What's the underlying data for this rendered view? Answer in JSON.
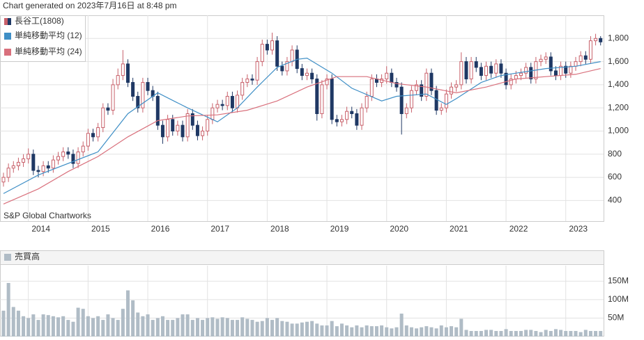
{
  "header": {
    "text": "Chart generated on 2023年7月16日 at 8:48 pm",
    "credit": "S&P Global Chartworks"
  },
  "chart_data": [
    {
      "type": "candlestick",
      "name": "長谷工(1808)",
      "up_color": "#c8606a",
      "down_color": "#1f3864",
      "open": [
        560,
        600,
        680,
        700,
        730,
        760,
        800,
        660,
        650,
        700,
        680,
        750,
        780,
        820,
        800,
        720,
        820,
        870,
        980,
        950,
        1030,
        1200,
        1180,
        1400,
        1480,
        1580,
        1420,
        1300,
        1200,
        1420,
        1350,
        1300,
        1050,
        950,
        1100,
        1000,
        1050,
        950,
        1150,
        1050,
        960,
        1000,
        1100,
        1200,
        1230,
        1220,
        1300,
        1200,
        1310,
        1420,
        1450,
        1440,
        1600,
        1750,
        1700,
        1780,
        1560,
        1520,
        1600,
        1700,
        1540,
        1480,
        1500,
        1450,
        1150,
        1400,
        1450,
        1100,
        1080,
        1100,
        1170,
        1150,
        1050,
        1200,
        1300,
        1450,
        1420,
        1450,
        1500,
        1420,
        1380,
        1150,
        1200,
        1350,
        1400,
        1300,
        1500,
        1350,
        1180,
        1200,
        1320,
        1380,
        1400,
        1600,
        1450,
        1600,
        1550,
        1480,
        1560,
        1500,
        1580,
        1500,
        1400,
        1450,
        1480,
        1500,
        1550,
        1450,
        1600,
        1620,
        1640,
        1520,
        1480,
        1560,
        1500,
        1560,
        1600,
        1650,
        1620,
        1780,
        1800
      ],
      "high": [
        640,
        720,
        740,
        770,
        800,
        850,
        840,
        700,
        740,
        740,
        790,
        820,
        860,
        860,
        840,
        860,
        910,
        1020,
        1020,
        1070,
        1240,
        1240,
        1450,
        1540,
        1700,
        1620,
        1460,
        1340,
        1460,
        1460,
        1390,
        1340,
        1090,
        1140,
        1140,
        1090,
        1090,
        1190,
        1190,
        1090,
        1040,
        1140,
        1240,
        1270,
        1270,
        1340,
        1340,
        1350,
        1460,
        1490,
        1490,
        1640,
        1790,
        1790,
        1850,
        1820,
        1600,
        1640,
        1740,
        1740,
        1580,
        1540,
        1540,
        1490,
        1440,
        1490,
        1490,
        1140,
        1140,
        1210,
        1210,
        1190,
        1240,
        1340,
        1490,
        1490,
        1490,
        1560,
        1540,
        1460,
        1420,
        1240,
        1390,
        1440,
        1440,
        1540,
        1540,
        1390,
        1240,
        1360,
        1420,
        1440,
        1680,
        1640,
        1640,
        1640,
        1590,
        1600,
        1600,
        1620,
        1620,
        1540,
        1490,
        1520,
        1540,
        1590,
        1590,
        1640,
        1660,
        1680,
        1680,
        1560,
        1600,
        1600,
        1600,
        1640,
        1690,
        1690,
        1820,
        1840,
        1820
      ],
      "low": [
        520,
        560,
        640,
        660,
        690,
        720,
        620,
        600,
        610,
        640,
        640,
        710,
        740,
        760,
        680,
        680,
        780,
        830,
        910,
        910,
        990,
        1140,
        1140,
        1360,
        1440,
        1380,
        1260,
        1160,
        1160,
        1310,
        1260,
        1010,
        890,
        910,
        960,
        960,
        910,
        910,
        1010,
        920,
        920,
        960,
        1060,
        1160,
        1180,
        1180,
        1160,
        1160,
        1270,
        1380,
        1400,
        1400,
        1560,
        1660,
        1660,
        1520,
        1480,
        1480,
        1560,
        1500,
        1440,
        1440,
        1410,
        1090,
        1110,
        1360,
        1060,
        1040,
        1040,
        1060,
        1110,
        1010,
        1010,
        1160,
        1260,
        1380,
        1380,
        1410,
        1380,
        1340,
        970,
        1110,
        1160,
        1310,
        1260,
        1260,
        1310,
        1140,
        1140,
        1160,
        1280,
        1340,
        1360,
        1410,
        1410,
        1510,
        1440,
        1440,
        1460,
        1460,
        1460,
        1360,
        1360,
        1410,
        1440,
        1460,
        1410,
        1410,
        1560,
        1580,
        1480,
        1440,
        1440,
        1460,
        1460,
        1520,
        1560,
        1580,
        1580,
        1740,
        1740
      ],
      "close": [
        600,
        680,
        700,
        730,
        760,
        800,
        660,
        650,
        700,
        680,
        750,
        780,
        820,
        800,
        720,
        820,
        870,
        980,
        950,
        1030,
        1200,
        1180,
        1400,
        1480,
        1580,
        1420,
        1300,
        1200,
        1420,
        1350,
        1300,
        1050,
        950,
        1100,
        1000,
        1050,
        950,
        1150,
        1050,
        960,
        1000,
        1100,
        1200,
        1230,
        1220,
        1300,
        1200,
        1310,
        1420,
        1450,
        1440,
        1600,
        1750,
        1700,
        1780,
        1560,
        1520,
        1600,
        1700,
        1540,
        1480,
        1500,
        1450,
        1150,
        1400,
        1450,
        1100,
        1080,
        1100,
        1170,
        1150,
        1050,
        1200,
        1300,
        1450,
        1420,
        1450,
        1500,
        1420,
        1380,
        1150,
        1200,
        1350,
        1400,
        1300,
        1500,
        1350,
        1180,
        1200,
        1320,
        1380,
        1400,
        1600,
        1450,
        1600,
        1550,
        1480,
        1560,
        1500,
        1580,
        1500,
        1400,
        1450,
        1480,
        1500,
        1550,
        1450,
        1600,
        1620,
        1640,
        1520,
        1480,
        1560,
        1500,
        1560,
        1600,
        1650,
        1620,
        1780,
        1800,
        1770
      ],
      "series": [
        {
          "name": "単純移動平均 (12)",
          "color": "#3f8fc6",
          "x": [
            0,
            7,
            19,
            25,
            31,
            37,
            43,
            47,
            51,
            55,
            59,
            61,
            66,
            70,
            76,
            79,
            85,
            89,
            91,
            96,
            100,
            103,
            109,
            115,
            120
          ],
          "values": [
            460,
            620,
            820,
            1150,
            1330,
            1200,
            1080,
            1200,
            1380,
            1550,
            1620,
            1630,
            1500,
            1370,
            1260,
            1300,
            1320,
            1230,
            1280,
            1420,
            1480,
            1500,
            1540,
            1560,
            1600
          ]
        },
        {
          "name": "単純移動平均 (24)",
          "color": "#d9707c",
          "x": [
            0,
            7,
            13,
            19,
            25,
            31,
            37,
            43,
            49,
            55,
            61,
            67,
            73,
            79,
            85,
            91,
            97,
            103,
            109,
            115,
            120
          ],
          "values": [
            370,
            500,
            650,
            780,
            950,
            1090,
            1130,
            1140,
            1180,
            1260,
            1380,
            1470,
            1470,
            1410,
            1380,
            1330,
            1380,
            1450,
            1470,
            1490,
            1540
          ]
        }
      ],
      "xlim": [
        -0.7,
        120.6
      ],
      "xticks": [
        {
          "value": 5,
          "label": "2014"
        },
        {
          "value": 17,
          "label": "2015"
        },
        {
          "value": 29,
          "label": "2016"
        },
        {
          "value": 41,
          "label": "2017"
        },
        {
          "value": 53,
          "label": "2018"
        },
        {
          "value": 65,
          "label": "2019"
        },
        {
          "value": 77,
          "label": "2020"
        },
        {
          "value": 89,
          "label": "2021"
        },
        {
          "value": 101,
          "label": "2022"
        },
        {
          "value": 113,
          "label": "2023"
        }
      ],
      "ylim": [
        222,
        2000
      ],
      "yticks": [
        400,
        600,
        800,
        {
          "value": 1000,
          "label": "1,000"
        },
        {
          "value": 1200,
          "label": "1,200"
        },
        {
          "value": 1400,
          "label": "1,400"
        },
        {
          "value": 1600,
          "label": "1,600"
        },
        {
          "value": 1800,
          "label": "1,800"
        }
      ],
      "grid": true
    },
    {
      "type": "bar",
      "name": "売買高",
      "color": "#b0bcc6",
      "values": [
        70,
        145,
        80,
        70,
        55,
        50,
        60,
        45,
        60,
        58,
        55,
        52,
        55,
        45,
        40,
        78,
        75,
        55,
        50,
        55,
        45,
        60,
        50,
        45,
        75,
        125,
        98,
        65,
        55,
        60,
        45,
        50,
        55,
        45,
        45,
        50,
        60,
        60,
        45,
        50,
        45,
        50,
        52,
        48,
        52,
        50,
        45,
        45,
        52,
        48,
        45,
        40,
        42,
        50,
        45,
        50,
        42,
        40,
        35,
        35,
        38,
        40,
        42,
        35,
        30,
        30,
        42,
        28,
        35,
        30,
        25,
        30,
        25,
        30,
        28,
        28,
        30,
        25,
        22,
        25,
        62,
        30,
        25,
        22,
        25,
        28,
        25,
        22,
        30,
        25,
        28,
        25,
        48,
        18,
        15,
        15,
        15,
        18,
        18,
        15,
        15,
        20,
        15,
        15,
        15,
        18,
        18,
        15,
        12,
        18,
        15,
        20,
        18,
        15,
        15,
        15,
        12,
        18,
        15,
        15,
        15
      ],
      "ylim": [
        0,
        192
      ],
      "yticks": [
        {
          "value": 50,
          "label": "50M"
        },
        {
          "value": 100,
          "label": "100M"
        },
        {
          "value": 150,
          "label": "150M"
        }
      ],
      "grid": true
    }
  ]
}
